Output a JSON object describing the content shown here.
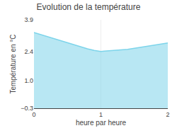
{
  "chart_data": {
    "type": "area",
    "title": "Evolution de la température",
    "xlabel": "heure par heure",
    "ylabel": "Température en °C",
    "x": [
      0,
      0.1,
      0.2,
      0.3,
      0.4,
      0.5,
      0.6,
      0.7,
      0.8,
      0.9,
      1.0,
      1.05,
      1.1,
      1.2,
      1.3,
      1.4,
      1.5,
      1.6,
      1.7,
      1.8,
      1.9,
      2.0
    ],
    "values": [
      3.3,
      3.2,
      3.1,
      3.0,
      2.9,
      2.8,
      2.7,
      2.62,
      2.52,
      2.45,
      2.4,
      2.41,
      2.42,
      2.44,
      2.47,
      2.5,
      2.55,
      2.6,
      2.65,
      2.7,
      2.76,
      2.8
    ],
    "color": "#7dd4ea",
    "xlim": [
      0,
      2
    ],
    "ylim": [
      -0.3,
      3.9
    ],
    "xticks": [
      0,
      1,
      2
    ],
    "yticks": [
      {
        "value": -0.3,
        "label": "−0.3"
      },
      {
        "value": 1.0,
        "label": "1.0"
      },
      {
        "value": 2.4,
        "label": "2.4"
      },
      {
        "value": 3.9,
        "label": "3.9"
      }
    ],
    "grid": "x"
  }
}
